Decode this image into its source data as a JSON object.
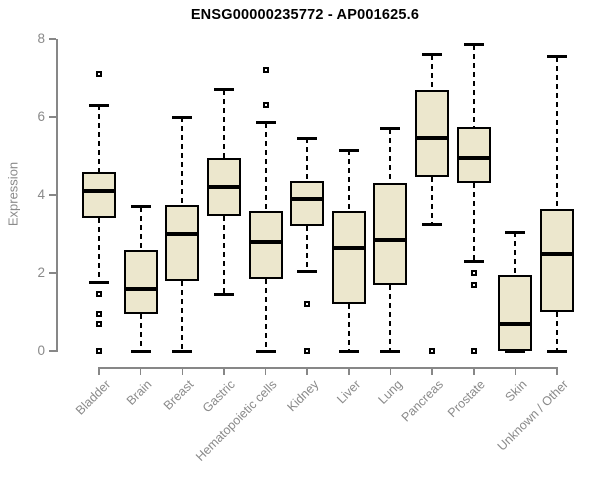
{
  "title": "ENSG00000235772 - AP001625.6",
  "colors": {
    "box_fill": "#ece7cd",
    "box_border": "#000000",
    "median": "#000000",
    "axis": "#878787",
    "axis_text": "#8a8a8a",
    "title_text": "#000000",
    "background": "#ffffff"
  },
  "chart_data": {
    "type": "boxplot",
    "title": "ENSG00000235772 - AP001625.6",
    "xlabel": "",
    "ylabel": "Expression",
    "ylim": [
      0,
      8
    ],
    "yticks": [
      0,
      2,
      4,
      6,
      8
    ],
    "grid": false,
    "legend": false,
    "categories": [
      "Bladder",
      "Brain",
      "Breast",
      "Gastric",
      "Hematopoietic cells",
      "Kidney",
      "Liver",
      "Lung",
      "Pancreas",
      "Prostate",
      "Skin",
      "Unknown / Other"
    ],
    "series": [
      {
        "name": "Bladder",
        "whisker_low": 1.75,
        "q1": 3.4,
        "median": 4.1,
        "q3": 4.6,
        "whisker_high": 6.3,
        "outliers": [
          7.1,
          1.45,
          0.95,
          0.7,
          0
        ]
      },
      {
        "name": "Brain",
        "whisker_low": 0.0,
        "q1": 0.95,
        "median": 1.6,
        "q3": 2.6,
        "whisker_high": 3.7,
        "outliers": []
      },
      {
        "name": "Breast",
        "whisker_low": 0.0,
        "q1": 1.8,
        "median": 3.0,
        "q3": 3.75,
        "whisker_high": 6.0,
        "outliers": []
      },
      {
        "name": "Gastric",
        "whisker_low": 1.45,
        "q1": 3.45,
        "median": 4.2,
        "q3": 4.95,
        "whisker_high": 6.7,
        "outliers": []
      },
      {
        "name": "Hematopoietic cells",
        "whisker_low": 0.0,
        "q1": 1.85,
        "median": 2.8,
        "q3": 3.6,
        "whisker_high": 5.85,
        "outliers": [
          7.2,
          6.3
        ]
      },
      {
        "name": "Kidney",
        "whisker_low": 2.05,
        "q1": 3.2,
        "median": 3.9,
        "q3": 4.35,
        "whisker_high": 5.45,
        "outliers": [
          1.2,
          0
        ]
      },
      {
        "name": "Liver",
        "whisker_low": 0.0,
        "q1": 1.2,
        "median": 2.65,
        "q3": 3.6,
        "whisker_high": 5.15,
        "outliers": []
      },
      {
        "name": "Lung",
        "whisker_low": 0.0,
        "q1": 1.7,
        "median": 2.85,
        "q3": 4.3,
        "whisker_high": 5.7,
        "outliers": []
      },
      {
        "name": "Pancreas",
        "whisker_low": 3.25,
        "q1": 4.45,
        "median": 5.45,
        "q3": 6.7,
        "whisker_high": 7.6,
        "outliers": [
          0
        ]
      },
      {
        "name": "Prostate",
        "whisker_low": 2.3,
        "q1": 4.3,
        "median": 4.95,
        "q3": 5.75,
        "whisker_high": 7.85,
        "outliers": [
          2.0,
          1.7,
          0
        ]
      },
      {
        "name": "Skin",
        "whisker_low": 0.0,
        "q1": 0.0,
        "median": 0.7,
        "q3": 1.95,
        "whisker_high": 3.05,
        "outliers": []
      },
      {
        "name": "Unknown / Other",
        "whisker_low": 0.0,
        "q1": 1.0,
        "median": 2.5,
        "q3": 3.65,
        "whisker_high": 7.55,
        "outliers": []
      }
    ]
  }
}
